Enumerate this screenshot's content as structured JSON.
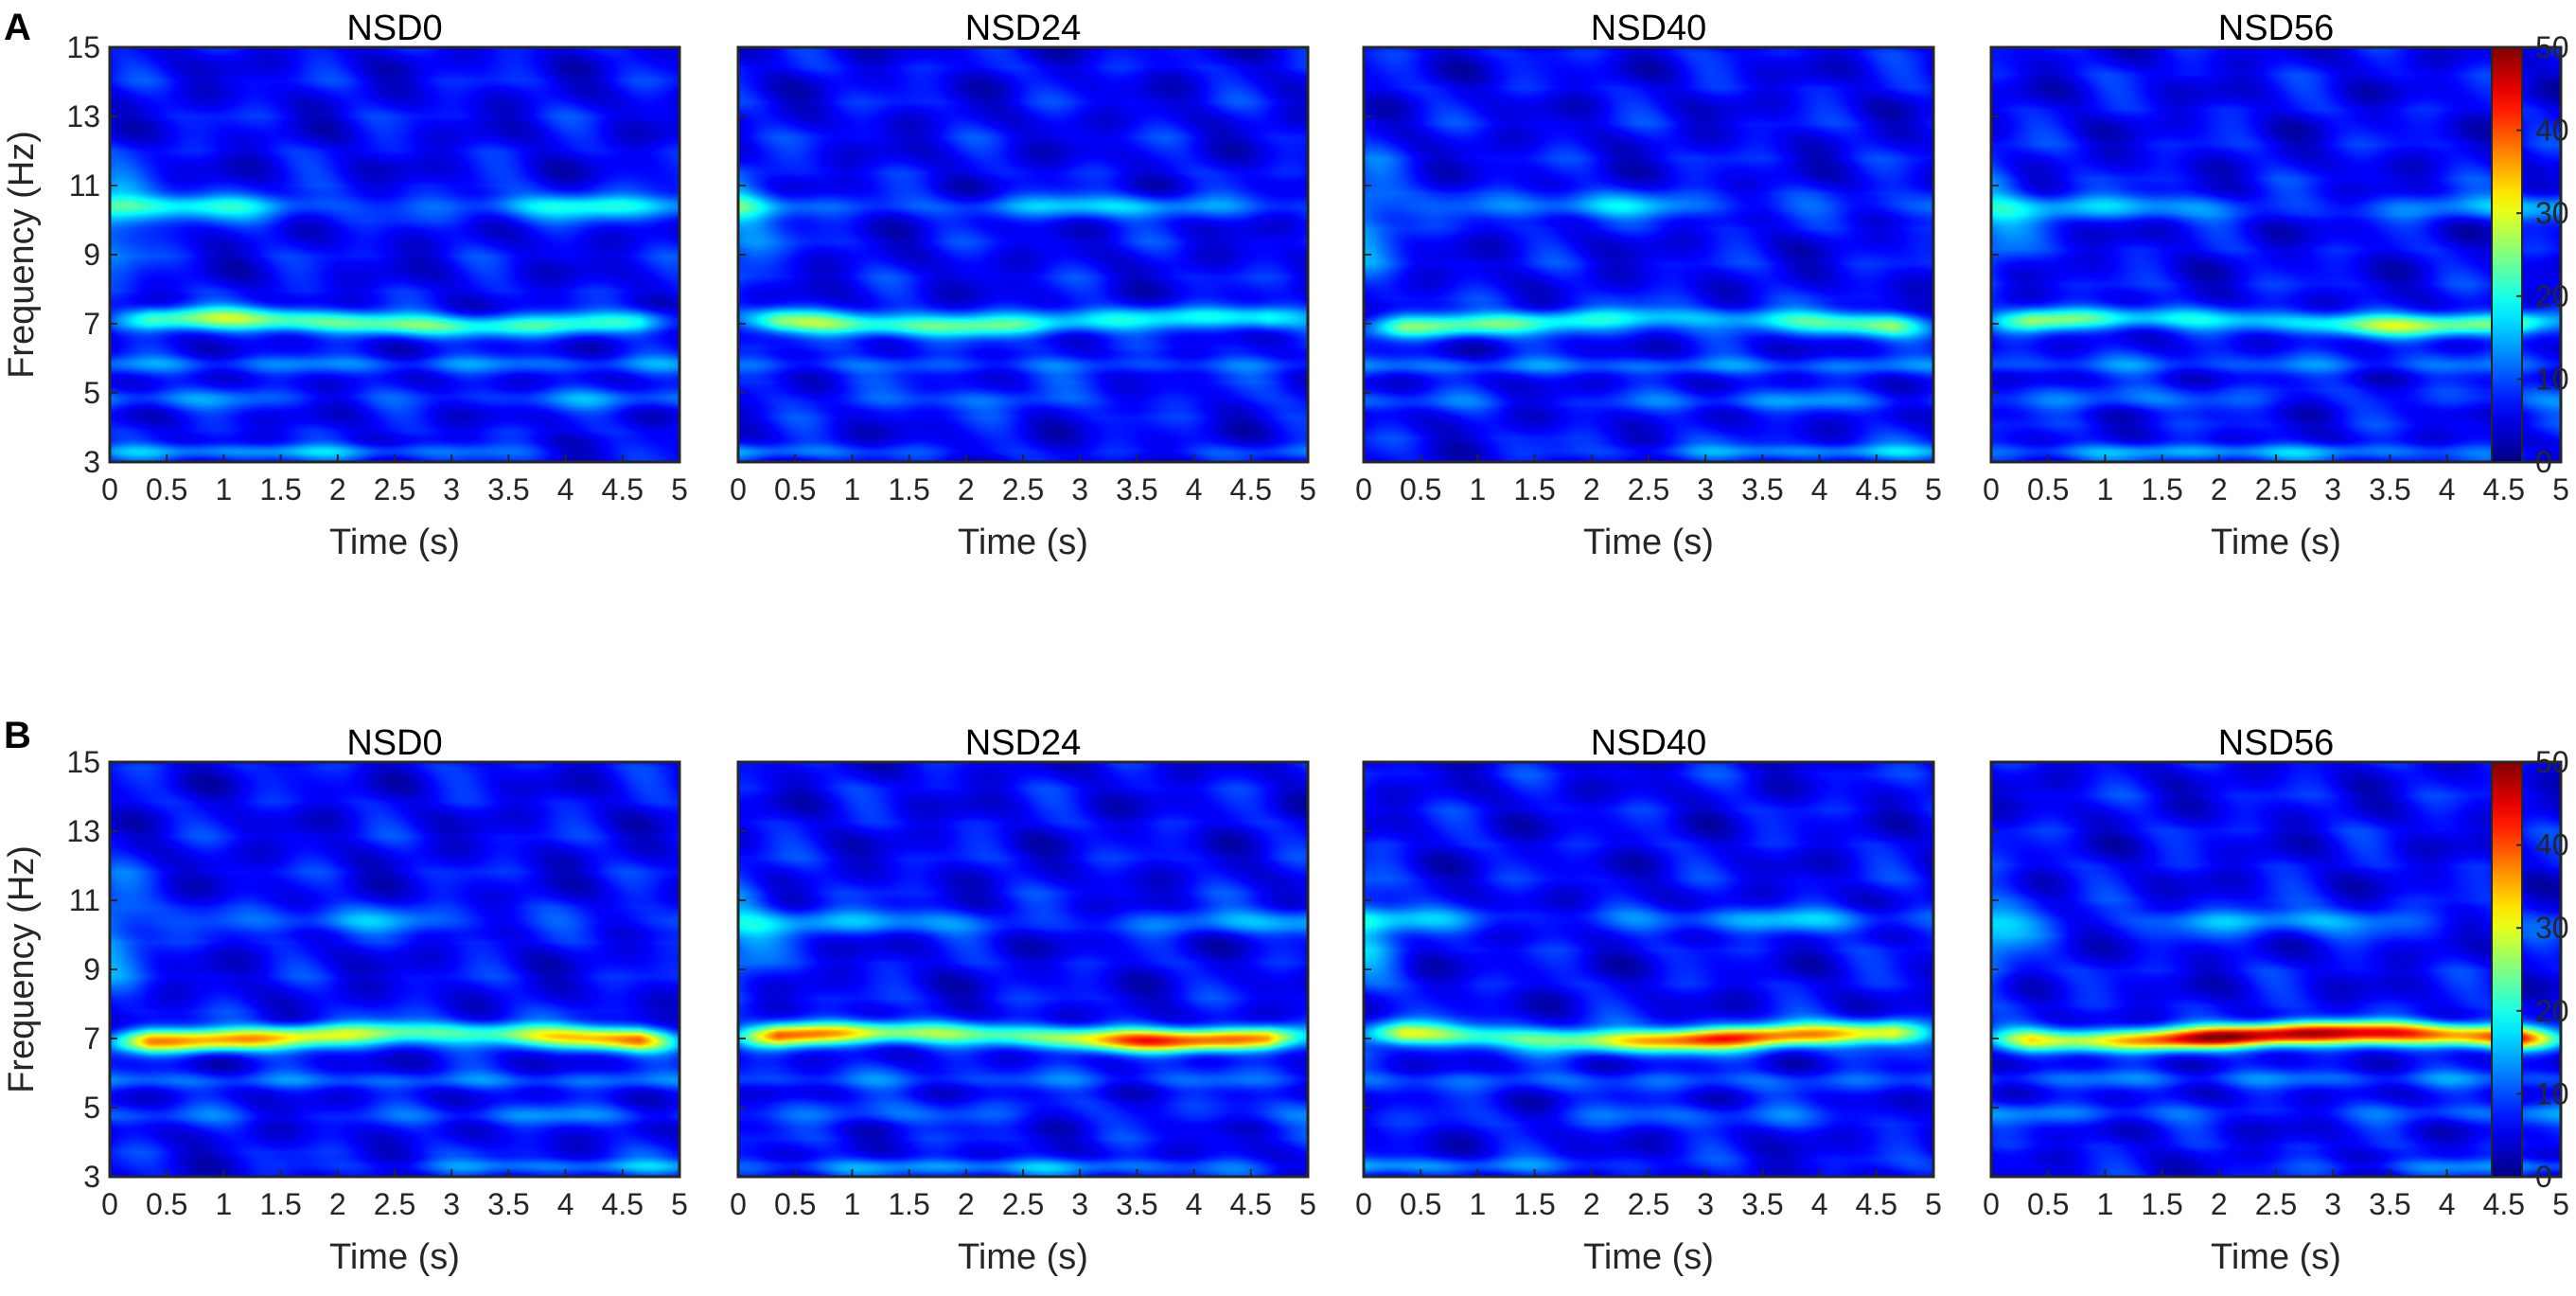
{
  "figure": {
    "row_labels": [
      "A",
      "B"
    ]
  },
  "chart_data": [
    {
      "type": "heatmap",
      "panel_label": "A",
      "subplots": [
        {
          "title": "NSD0",
          "theta_peak": 20,
          "alpha_peak": 14,
          "low_peak": 10
        },
        {
          "title": "NSD24",
          "theta_peak": 22,
          "alpha_peak": 10,
          "low_peak": 9
        },
        {
          "title": "NSD40",
          "theta_peak": 24,
          "alpha_peak": 10,
          "low_peak": 10
        },
        {
          "title": "NSD56",
          "theta_peak": 25,
          "alpha_peak": 10,
          "low_peak": 10
        }
      ],
      "xlabel": "Time (s)",
      "ylabel": "Frequency (Hz)",
      "xlim": [
        0,
        5
      ],
      "ylim": [
        3,
        15
      ],
      "xticks": [
        "0",
        "0.5",
        "1",
        "1.5",
        "2",
        "2.5",
        "3",
        "3.5",
        "4",
        "4.5",
        "5"
      ],
      "yticks": [
        "3",
        "5",
        "7",
        "9",
        "11",
        "13",
        "15"
      ],
      "colorbar": {
        "min": 0,
        "max": 50,
        "ticks": [
          "0",
          "10",
          "20",
          "30",
          "40",
          "50"
        ],
        "colormap": "jet"
      },
      "theta_band_hz": 7
    },
    {
      "type": "heatmap",
      "panel_label": "B",
      "subplots": [
        {
          "title": "NSD0",
          "theta_peak": 40,
          "alpha_peak": 8,
          "low_peak": 9
        },
        {
          "title": "NSD24",
          "theta_peak": 43,
          "alpha_peak": 9,
          "low_peak": 9
        },
        {
          "title": "NSD40",
          "theta_peak": 40,
          "alpha_peak": 9,
          "low_peak": 9
        },
        {
          "title": "NSD56",
          "theta_peak": 45,
          "alpha_peak": 10,
          "low_peak": 9
        }
      ],
      "xlabel": "Time (s)",
      "ylabel": "Frequency (Hz)",
      "xlim": [
        0,
        5
      ],
      "ylim": [
        3,
        15
      ],
      "xticks": [
        "0",
        "0.5",
        "1",
        "1.5",
        "2",
        "2.5",
        "3",
        "3.5",
        "4",
        "4.5",
        "5"
      ],
      "yticks": [
        "3",
        "5",
        "7",
        "9",
        "11",
        "13",
        "15"
      ],
      "colorbar": {
        "min": 0,
        "max": 50,
        "ticks": [
          "0",
          "10",
          "20",
          "30",
          "40",
          "50"
        ],
        "colormap": "jet"
      },
      "theta_band_hz": 7
    }
  ]
}
